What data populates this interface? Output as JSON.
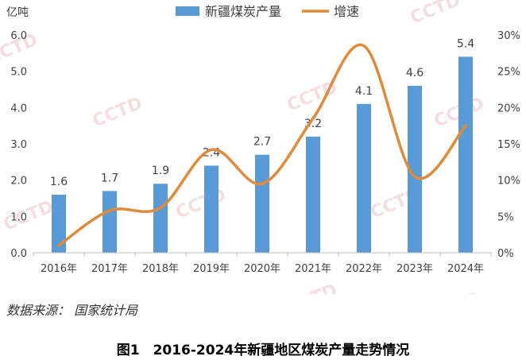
{
  "chart_data": {
    "type": "bar+line",
    "categories": [
      "2016年",
      "2017年",
      "2018年",
      "2019年",
      "2020年",
      "2021年",
      "2022年",
      "2023年",
      "2024年"
    ],
    "series": [
      {
        "name": "新疆煤炭产量",
        "type": "bar",
        "axis": "left",
        "color": "#5b9bd5",
        "values": [
          1.6,
          1.7,
          1.9,
          2.4,
          2.7,
          3.2,
          4.1,
          4.6,
          5.4
        ],
        "labels": [
          "1.6",
          "1.7",
          "1.9",
          "2.4",
          "2.7",
          "3.2",
          "4.1",
          "4.6",
          "5.4"
        ]
      },
      {
        "name": "增速",
        "type": "line",
        "axis": "right",
        "color": "#e08a3c",
        "values": [
          1,
          5.8,
          6.2,
          14.2,
          9.5,
          18.5,
          28.5,
          10.5,
          17.5
        ]
      }
    ],
    "yleft": {
      "unit": "亿吨",
      "ylim": [
        0,
        6
      ],
      "ticks": [
        "0.0",
        "1.0",
        "2.0",
        "3.0",
        "4.0",
        "5.0",
        "6.0"
      ]
    },
    "yright": {
      "ylim": [
        0,
        30
      ],
      "ticks": [
        "0%",
        "5%",
        "10%",
        "15%",
        "20%",
        "25%",
        "30%"
      ]
    },
    "legend": "top-center",
    "grid": false
  },
  "watermark": "CCTD",
  "source": "数据来源： 国家统计局",
  "caption": "图1　2016-2024年新疆地区煤炭产量走势情况"
}
